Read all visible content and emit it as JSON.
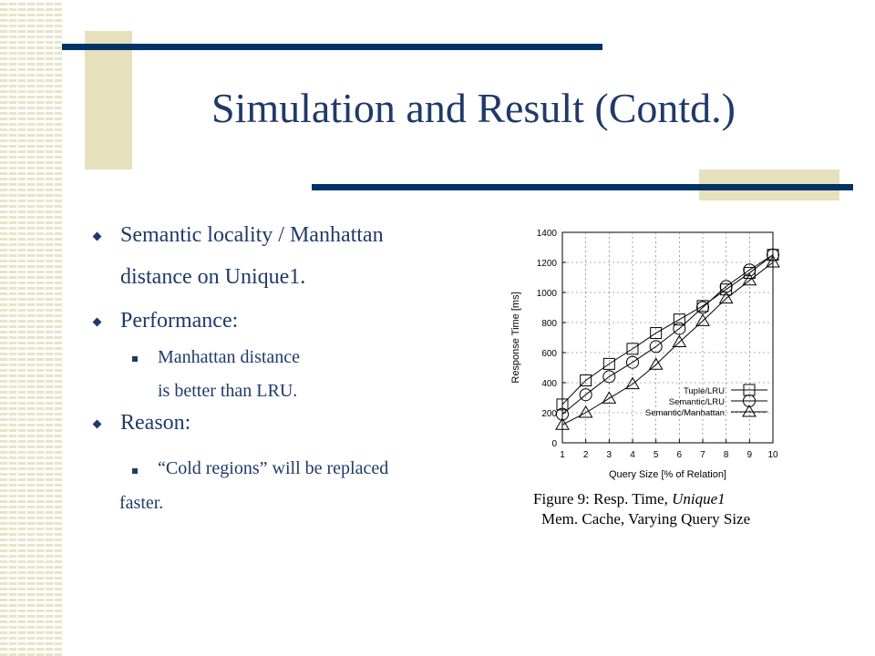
{
  "slide": {
    "title": "Simulation and Result (Contd.)",
    "bullets": [
      {
        "line1": "Semantic locality / Manhattan",
        "line2": "distance on Unique1."
      },
      {
        "line1": "Performance:"
      },
      {
        "line1": "Reason:"
      }
    ],
    "subbullets": {
      "perf_line1": "Manhattan distance",
      "perf_line2": "is better than LRU.",
      "reason_line1": "“Cold regions” will be replaced",
      "reason_line2": "faster."
    },
    "caption": {
      "line1_prefix": "Figure 9: Resp. Time,",
      "line1_italic": "Unique1",
      "line2": "Mem. Cache, Varying Query Size"
    }
  },
  "chart_data": {
    "type": "line",
    "xlabel": "Query Size [% of Relation]",
    "ylabel": "Response Time [ms]",
    "x": [
      1,
      2,
      3,
      4,
      5,
      6,
      7,
      8,
      9,
      10
    ],
    "xlim": [
      1,
      10
    ],
    "ylim": [
      0,
      1400
    ],
    "yticks": [
      0,
      200,
      400,
      600,
      800,
      1000,
      1200,
      1400
    ],
    "grid": true,
    "legend_position": "bottom-right",
    "series": [
      {
        "name": "Tuple/LRU",
        "marker": "square",
        "values": [
          255,
          415,
          525,
          625,
          730,
          820,
          910,
          1020,
          1130,
          1250
        ]
      },
      {
        "name": "Semantic/LRU",
        "marker": "circle",
        "values": [
          190,
          320,
          440,
          535,
          640,
          760,
          900,
          1040,
          1150,
          1250
        ]
      },
      {
        "name": "Semantic/Manhattan",
        "marker": "triangle",
        "values": [
          120,
          200,
          295,
          390,
          520,
          670,
          810,
          960,
          1080,
          1200
        ]
      }
    ]
  }
}
